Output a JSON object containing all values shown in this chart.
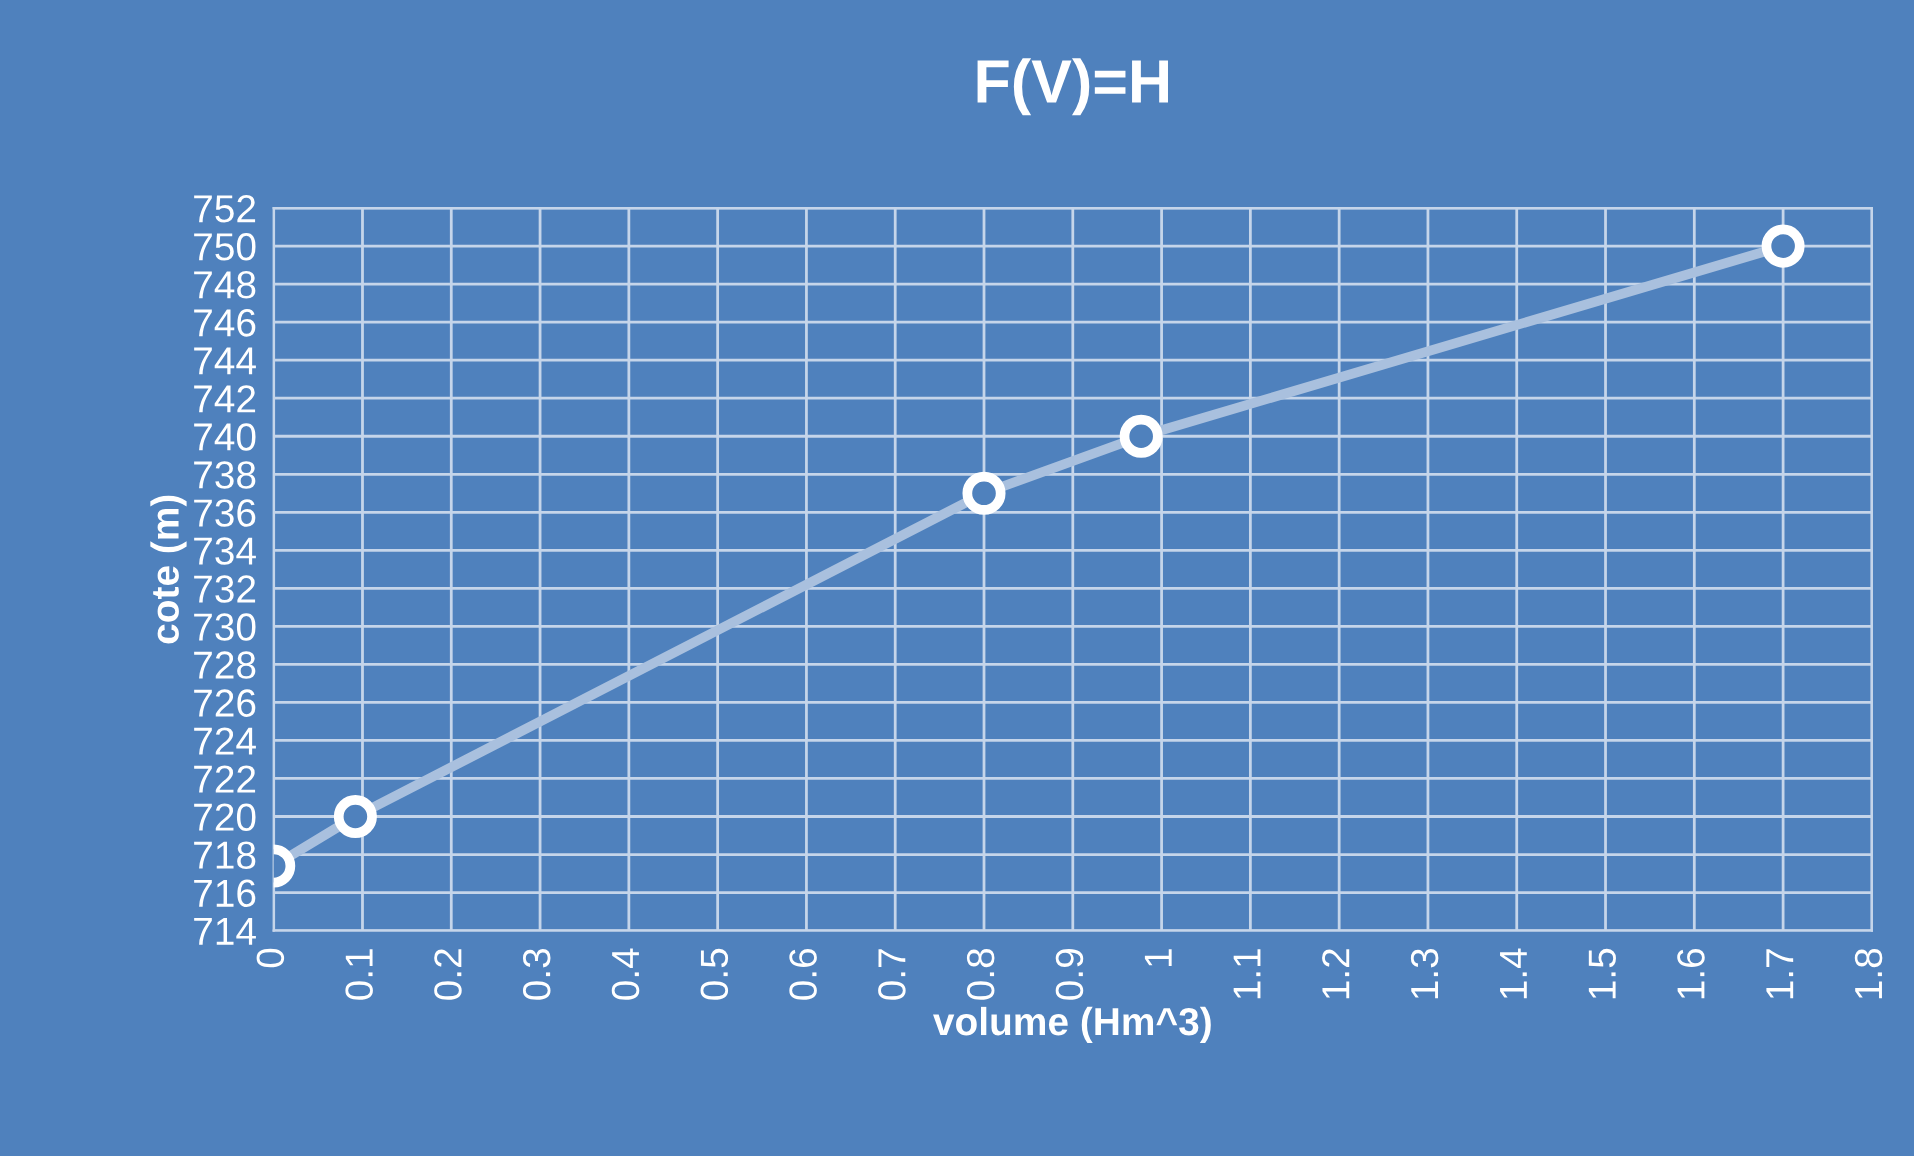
{
  "chart_data": {
    "type": "line",
    "title": "F(V)=H",
    "xlabel": "volume (Hm^3)",
    "ylabel": "cote (m)",
    "x": [
      0,
      0.092,
      0.8,
      0.977,
      1.7
    ],
    "series": [
      {
        "color": "#a9c0de",
        "values": [
          717.4,
          720,
          737,
          740,
          750
        ]
      }
    ],
    "xlim": [
      0,
      1.8
    ],
    "xticks": [
      0,
      0.1,
      0.2,
      0.3,
      0.4,
      0.5,
      0.6,
      0.7,
      0.8,
      0.9,
      1,
      1.1,
      1.2,
      1.3,
      1.4,
      1.5,
      1.6,
      1.7,
      1.8
    ],
    "ylim": [
      714,
      752
    ],
    "yticks": [
      714,
      716,
      718,
      720,
      722,
      724,
      726,
      728,
      730,
      732,
      734,
      736,
      738,
      740,
      742,
      744,
      746,
      748,
      750,
      752
    ],
    "grid": true,
    "marker": "circle",
    "line_style": "solid",
    "legend": false
  }
}
